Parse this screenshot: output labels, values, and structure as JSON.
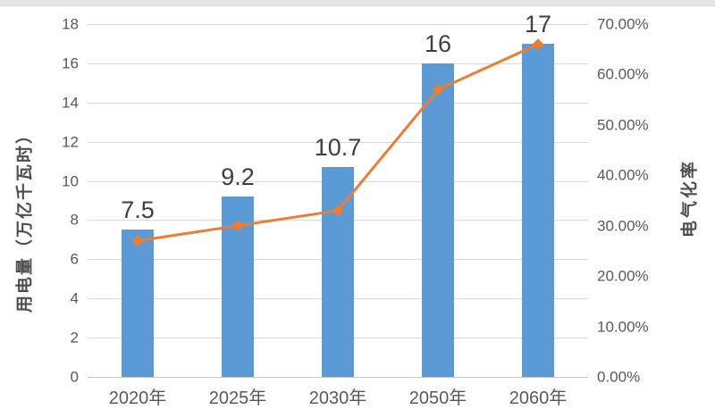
{
  "chart_data": {
    "type": "combo-bar-line",
    "categories": [
      "2020年",
      "2025年",
      "2030年",
      "2050年",
      "2060年"
    ],
    "series": [
      {
        "name": "用电量",
        "type": "bar",
        "axis": "left",
        "color": "#5B9BD5",
        "values": [
          7.5,
          9.2,
          10.7,
          16,
          17
        ],
        "labels": [
          "7.5",
          "9.2",
          "10.7",
          "16",
          "17"
        ]
      },
      {
        "name": "电气化率",
        "type": "line",
        "axis": "right",
        "color": "#ED7D31",
        "values": [
          27,
          30,
          33,
          57,
          66
        ]
      }
    ],
    "left_axis": {
      "title": "用电量（万亿千瓦时）",
      "min": 0,
      "max": 18,
      "step": 2,
      "ticks": [
        "0",
        "2",
        "4",
        "6",
        "8",
        "10",
        "12",
        "14",
        "16",
        "18"
      ]
    },
    "right_axis": {
      "title": "电气化率",
      "min": 0,
      "max": 70,
      "step": 10,
      "ticks": [
        "0.00%",
        "10.00%",
        "20.00%",
        "30.00%",
        "40.00%",
        "50.00%",
        "60.00%",
        "70.00%"
      ]
    },
    "grid": true,
    "legend": "none",
    "colors": {
      "bar": "#5B9BD5",
      "line": "#ED7D31",
      "grid": "#D9D9D9",
      "axis_line": "#C7C7C7",
      "axis_text": "#595959",
      "data_label": "#3F3F3F"
    }
  }
}
